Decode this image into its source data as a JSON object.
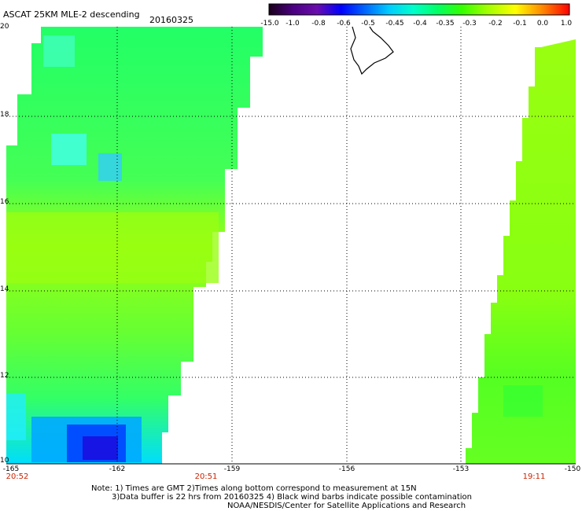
{
  "header": {
    "title": "ASCAT 25KM MLE-2 descending",
    "date": "20160325"
  },
  "colorbar": {
    "labels": [
      "-15.0",
      "-1.0",
      "-0.8",
      "-0.6",
      "-0.5",
      "-0.45",
      "-0.4",
      "-0.35",
      "-0.3",
      "-0.2",
      "-0.1",
      "0.0",
      "1.0"
    ],
    "colors": [
      "#1a001a",
      "#4b0082",
      "#6a0dad",
      "#0000ff",
      "#0066ff",
      "#00ccff",
      "#00ffcc",
      "#00ff66",
      "#33ff00",
      "#99ff00",
      "#ffff00",
      "#ff8800",
      "#ff0000"
    ]
  },
  "axes": {
    "lat_labels": [
      "20",
      "18",
      "16",
      "14",
      "12",
      "10"
    ],
    "lon_labels": [
      "-165",
      "-162",
      "-159",
      "-156",
      "-153",
      "-150"
    ]
  },
  "times": [
    "20:52",
    "20:51",
    "19:11"
  ],
  "notes": {
    "line1": "Note: 1) Times are GMT 2)Times along bottom correspond to measurement at 15N",
    "line2": "3)Data buffer is 22 hrs from 20160325 4) Black wind barbs indicate possible contamination",
    "line3": "NOAA/NESDIS/Center for Satellite Applications and Research"
  }
}
